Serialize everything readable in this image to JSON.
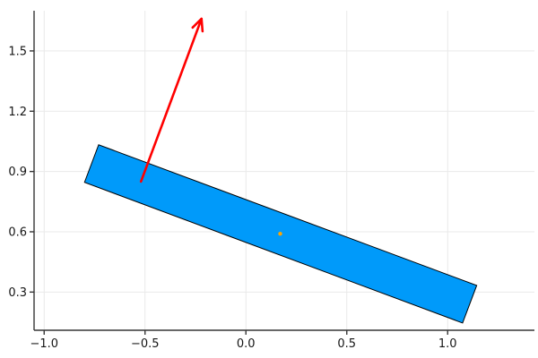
{
  "figure": {
    "background": "#ffffff"
  },
  "chart_data": {
    "type": "scatter",
    "title": "",
    "xlabel": "",
    "ylabel": "",
    "xlim": [
      -1.05,
      1.43
    ],
    "ylim": [
      0.11,
      1.7
    ],
    "grid": true,
    "legend": false,
    "x_ticks": [
      -1.0,
      -0.5,
      0.0,
      0.5,
      1.0
    ],
    "x_tick_labels": [
      "−1.0",
      "−0.5",
      "0.0",
      "0.5",
      "1.0"
    ],
    "y_ticks": [
      0.3,
      0.6,
      0.9,
      1.2,
      1.5
    ],
    "y_tick_labels": [
      "0.3",
      "0.6",
      "0.9",
      "1.2",
      "1.5"
    ],
    "series": [
      {
        "name": "rigid-body-polygon",
        "type": "polygon",
        "points": [
          [
            -0.8,
            0.846
          ],
          [
            -0.73,
            1.033
          ],
          [
            1.144,
            0.333
          ],
          [
            1.074,
            0.146
          ]
        ],
        "fill": "#009AFA",
        "stroke": "#000000",
        "stroke_width": 1
      },
      {
        "name": "center-of-mass-marker",
        "type": "point",
        "x": 0.17,
        "y": 0.59,
        "color": "#FFA500",
        "radius": 2.2
      },
      {
        "name": "force-arrow",
        "type": "arrow",
        "from": [
          -0.52,
          0.85
        ],
        "to": [
          -0.22,
          1.66
        ],
        "color": "#FF0000",
        "stroke_width": 2.6
      }
    ],
    "colors": {
      "grid": "#e9e9e9",
      "axis": "#363636",
      "tick_label": "#151515"
    }
  }
}
